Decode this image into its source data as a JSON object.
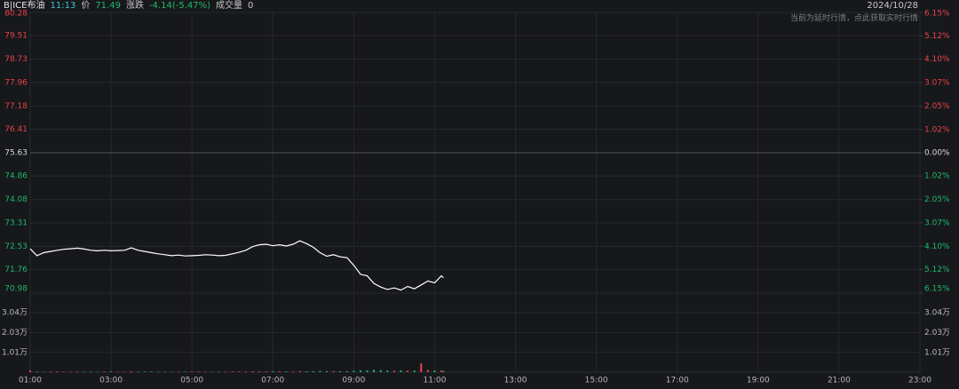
{
  "header": {
    "symbol": "B|ICE布油",
    "time": "11:13",
    "price_label": "价",
    "price": "71.49",
    "change_label": "涨跌",
    "change": "-4.14(-5.47%)",
    "volume_label": "成交量",
    "volume": "0",
    "date": "2024/10/28",
    "notice": "当前为延时行情，点此获取实时行情"
  },
  "chart_data": {
    "type": "line",
    "x": [
      "01:00",
      "01:10",
      "01:20",
      "01:30",
      "01:40",
      "01:50",
      "02:00",
      "02:10",
      "02:20",
      "02:30",
      "02:40",
      "02:50",
      "03:00",
      "03:10",
      "03:20",
      "03:30",
      "03:40",
      "03:50",
      "04:00",
      "04:10",
      "04:20",
      "04:30",
      "04:40",
      "04:50",
      "05:00",
      "05:10",
      "05:20",
      "05:30",
      "05:40",
      "05:50",
      "06:00",
      "06:10",
      "06:20",
      "06:30",
      "06:40",
      "06:50",
      "07:00",
      "07:10",
      "07:20",
      "07:30",
      "07:40",
      "07:50",
      "08:00",
      "08:10",
      "08:20",
      "08:30",
      "08:40",
      "08:50",
      "09:00",
      "09:10",
      "09:20",
      "09:30",
      "09:40",
      "09:50",
      "10:00",
      "10:10",
      "10:20",
      "10:30",
      "10:40",
      "10:50",
      "11:00",
      "11:10",
      "11:13"
    ],
    "values": [
      72.45,
      72.22,
      72.32,
      72.36,
      72.4,
      72.43,
      72.45,
      72.47,
      72.44,
      72.4,
      72.38,
      72.4,
      72.38,
      72.39,
      72.4,
      72.48,
      72.4,
      72.36,
      72.32,
      72.28,
      72.25,
      72.22,
      72.24,
      72.21,
      72.22,
      72.23,
      72.25,
      72.24,
      72.22,
      72.23,
      72.28,
      72.33,
      72.4,
      72.52,
      72.58,
      72.6,
      72.55,
      72.58,
      72.54,
      72.6,
      72.71,
      72.62,
      72.5,
      72.32,
      72.2,
      72.25,
      72.18,
      72.15,
      71.9,
      71.6,
      71.55,
      71.3,
      71.18,
      71.1,
      71.15,
      71.08,
      71.2,
      71.12,
      71.25,
      71.38,
      71.32,
      71.55,
      71.49
    ],
    "color": "#ffffff",
    "up_color": "#e8434a",
    "down_color": "#1fb86b",
    "base_color": "#d8d8d8",
    "base": 75.63,
    "xlim": [
      "01:00",
      "23:00"
    ],
    "xticks": [
      "01:00",
      "03:00",
      "05:00",
      "07:00",
      "09:00",
      "11:00",
      "13:00",
      "15:00",
      "17:00",
      "19:00",
      "21:00",
      "23:00"
    ],
    "ylim": [
      70.98,
      80.28
    ],
    "yticks": [
      80.28,
      79.51,
      78.73,
      77.96,
      77.18,
      76.41,
      75.63,
      74.86,
      74.08,
      73.31,
      72.53,
      71.76,
      70.98
    ],
    "y2lim": [
      -6.15,
      6.15
    ],
    "y2ticks": [
      {
        "value": 6.15,
        "label": "6.15%"
      },
      {
        "value": 5.12,
        "label": "5.12%"
      },
      {
        "value": 4.1,
        "label": "4.10%"
      },
      {
        "value": 3.07,
        "label": "3.07%"
      },
      {
        "value": 2.05,
        "label": "2.05%"
      },
      {
        "value": 1.02,
        "label": "1.02%"
      },
      {
        "value": 0,
        "label": "0.00%"
      },
      {
        "value": -1.02,
        "label": "1.02%"
      },
      {
        "value": -2.05,
        "label": "2.05%"
      },
      {
        "value": -3.07,
        "label": "3.07%"
      },
      {
        "value": -4.1,
        "label": "4.10%"
      },
      {
        "value": -5.12,
        "label": "5.12%"
      },
      {
        "value": -6.15,
        "label": "6.15%"
      }
    ],
    "grid": true,
    "volume": {
      "values": [
        900,
        300,
        250,
        400,
        350,
        300,
        280,
        320,
        300,
        260,
        240,
        300,
        350,
        280,
        300,
        420,
        300,
        280,
        260,
        240,
        250,
        230,
        260,
        240,
        300,
        280,
        260,
        250,
        240,
        270,
        320,
        350,
        380,
        450,
        400,
        380,
        420,
        390,
        380,
        400,
        520,
        450,
        480,
        600,
        550,
        500,
        480,
        520,
        700,
        900,
        850,
        1200,
        1000,
        800,
        700,
        900,
        750,
        800,
        4500,
        1100,
        900,
        800,
        600
      ],
      "ylim": [
        0,
        40500
      ],
      "yticks": [
        {
          "value": 30400,
          "label": "3.04万"
        },
        {
          "value": 20300,
          "label": "2.03万"
        },
        {
          "value": 10100,
          "label": "1.01万"
        }
      ]
    }
  }
}
